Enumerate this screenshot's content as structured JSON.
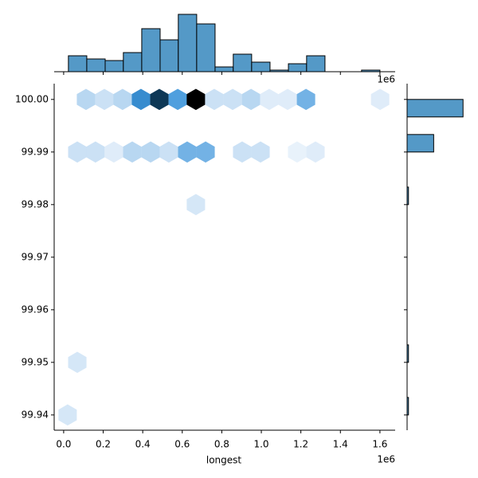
{
  "chart_data": {
    "type": "hexbin",
    "x_label": "longest",
    "x_offset_label": "1e6",
    "xlim": [
      -0.048,
      1.677
    ],
    "ylim": [
      99.9371,
      100.003
    ],
    "xticks": [
      {
        "value": 0,
        "label": "0.0"
      },
      {
        "value": 0.2,
        "label": "0.2"
      },
      {
        "value": 0.4,
        "label": "0.4"
      },
      {
        "value": 0.6,
        "label": "0.6"
      },
      {
        "value": 0.8,
        "label": "0.8"
      },
      {
        "value": 1.0,
        "label": "1.0"
      },
      {
        "value": 1.2,
        "label": "1.2"
      },
      {
        "value": 1.4,
        "label": "1.4"
      },
      {
        "value": 1.6,
        "label": "1.6"
      }
    ],
    "yticks": [
      {
        "value": 99.94,
        "label": "99.94"
      },
      {
        "value": 99.95,
        "label": "99.95"
      },
      {
        "value": 99.96,
        "label": "99.96"
      },
      {
        "value": 99.97,
        "label": "99.97"
      },
      {
        "value": 99.98,
        "label": "99.98"
      },
      {
        "value": 99.99,
        "label": "99.99"
      },
      {
        "value": 100.0,
        "label": "100.00"
      }
    ],
    "x": [
      0.113,
      0.206,
      0.298,
      0.391,
      0.484,
      0.577,
      0.669,
      0.762,
      0.855,
      0.948,
      1.04,
      1.133,
      1.226,
      1.601,
      0.069,
      0.161,
      0.254,
      0.347,
      0.44,
      0.532,
      0.625,
      0.718,
      0.903,
      0.996,
      1.181,
      1.274,
      0.669,
      0.069,
      0.02
    ],
    "y": [
      100.0,
      100.0,
      100.0,
      100.0,
      100.0,
      100.0,
      100.0,
      100.0,
      100.0,
      100.0,
      100.0,
      100.0,
      100.0,
      100.0,
      99.99,
      99.99,
      99.99,
      99.99,
      99.99,
      99.99,
      99.99,
      99.99,
      99.99,
      99.99,
      99.99,
      99.99,
      99.98,
      99.95,
      99.94
    ],
    "counts": [
      6,
      4,
      6,
      14,
      22,
      12,
      26,
      4,
      4,
      6,
      2,
      2,
      10,
      2,
      4,
      4,
      2,
      6,
      6,
      4,
      10,
      10,
      4,
      4,
      1,
      2,
      3,
      3,
      3
    ],
    "colormap": [
      "#f2f7fd",
      "#b3d4f0",
      "#3d95db",
      "#175b8b",
      "#000000"
    ],
    "x_hist": {
      "bins": [
        0.024,
        0.117,
        0.21,
        0.302,
        0.395,
        0.488,
        0.58,
        0.673,
        0.766,
        0.858,
        0.951,
        1.044,
        1.137,
        1.229,
        1.322,
        1.415,
        1.507,
        1.6
      ],
      "counts": [
        10,
        8,
        7,
        12,
        27,
        20,
        36,
        30,
        3,
        11,
        6,
        1,
        5,
        10,
        0,
        0,
        1
      ],
      "ylim": [
        0,
        37.5
      ],
      "color": "#5499c7"
    },
    "y_hist": {
      "bins": [
        99.94,
        99.94333,
        99.94667,
        99.95,
        99.95333,
        99.95667,
        99.96,
        99.96333,
        99.96667,
        99.97,
        99.97333,
        99.97667,
        99.98,
        99.98333,
        99.98667,
        99.99,
        99.99333,
        99.99667,
        100.0
      ],
      "counts": [
        3,
        0,
        0,
        3,
        0,
        0,
        0,
        0,
        0,
        0,
        0,
        0,
        3,
        0,
        0,
        57,
        0,
        120
      ],
      "xlim": [
        0,
        135
      ],
      "color": "#5499c7"
    }
  }
}
